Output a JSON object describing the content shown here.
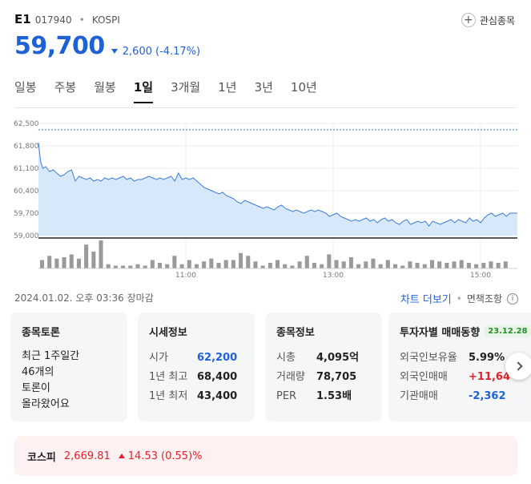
{
  "header": {
    "name": "E1",
    "code": "017940",
    "market": "KOSPI",
    "favorite_label": "관심종목"
  },
  "price": {
    "value": "59,700",
    "change": "2,600",
    "change_pct": "(-4.17%)",
    "direction": "down",
    "color": "#1f62d6"
  },
  "tabs": [
    {
      "label": "일봉",
      "active": false
    },
    {
      "label": "주봉",
      "active": false
    },
    {
      "label": "월봉",
      "active": false
    },
    {
      "label": "1일",
      "active": true
    },
    {
      "label": "3개월",
      "active": false
    },
    {
      "label": "1년",
      "active": false
    },
    {
      "label": "3년",
      "active": false
    },
    {
      "label": "10년",
      "active": false
    }
  ],
  "chart_data": {
    "type": "area",
    "y_ticks": [
      "62,500",
      "61,800",
      "61,100",
      "60,400",
      "59,700",
      "59,000"
    ],
    "ylim": [
      59000,
      62500
    ],
    "x_ticks": [
      "11:00",
      "13:00",
      "15:00"
    ],
    "x_tick_times": [
      11,
      13,
      15
    ],
    "xlim": [
      9,
      15.5
    ],
    "reference_line": 62300,
    "grid": true,
    "line_color": "#3b7dd8",
    "fill_color": "#d7e8fb",
    "series": [
      {
        "times": [
          9.0,
          9.03,
          9.06,
          9.1,
          9.15,
          9.2,
          9.25,
          9.3,
          9.35,
          9.4,
          9.45,
          9.5,
          9.55,
          9.6,
          9.65,
          9.7,
          9.75,
          9.8,
          9.85,
          9.9,
          9.95,
          10.0,
          10.05,
          10.1,
          10.15,
          10.2,
          10.25,
          10.3,
          10.35,
          10.4,
          10.45,
          10.5,
          10.55,
          10.6,
          10.65,
          10.7,
          10.75,
          10.8,
          10.85,
          10.9,
          10.95,
          11.0,
          11.05,
          11.1,
          11.15,
          11.2,
          11.25,
          11.3,
          11.35,
          11.4,
          11.45,
          11.5,
          11.55,
          11.6,
          11.65,
          11.7,
          11.75,
          11.8,
          11.85,
          11.9,
          11.95,
          12.0,
          12.05,
          12.1,
          12.15,
          12.2,
          12.25,
          12.3,
          12.35,
          12.4,
          12.45,
          12.5,
          12.55,
          12.6,
          12.65,
          12.7,
          12.75,
          12.8,
          12.85,
          12.9,
          12.95,
          13.0,
          13.05,
          13.1,
          13.15,
          13.2,
          13.25,
          13.3,
          13.35,
          13.4,
          13.45,
          13.5,
          13.55,
          13.6,
          13.65,
          13.7,
          13.75,
          13.8,
          13.85,
          13.9,
          13.95,
          14.0,
          14.05,
          14.1,
          14.15,
          14.2,
          14.25,
          14.3,
          14.35,
          14.4,
          14.45,
          14.5,
          14.55,
          14.6,
          14.65,
          14.7,
          14.75,
          14.8,
          14.85,
          14.9,
          14.95,
          15.0,
          15.05,
          15.1,
          15.15,
          15.2,
          15.25,
          15.3,
          15.35,
          15.4,
          15.45,
          15.5
        ],
        "prices": [
          61900,
          61300,
          61100,
          61150,
          61000,
          61050,
          60950,
          60850,
          60900,
          61000,
          61050,
          60700,
          60850,
          60800,
          60750,
          60800,
          60700,
          60750,
          60700,
          60800,
          60750,
          60800,
          60750,
          60800,
          60850,
          60750,
          60800,
          60700,
          60750,
          60750,
          60800,
          60850,
          60800,
          60750,
          60800,
          60750,
          60800,
          60850,
          60700,
          60950,
          60750,
          60800,
          60750,
          60800,
          60700,
          60600,
          60500,
          60450,
          60400,
          60350,
          60300,
          60350,
          60250,
          60200,
          60150,
          60050,
          60000,
          60100,
          60050,
          60000,
          59950,
          59900,
          59850,
          59900,
          59850,
          59800,
          59900,
          59950,
          59850,
          59800,
          59750,
          59800,
          59750,
          59700,
          59750,
          59800,
          59750,
          59800,
          59750,
          59700,
          59600,
          59650,
          59700,
          59600,
          59550,
          59500,
          59450,
          59500,
          59450,
          59500,
          59550,
          59450,
          59500,
          59400,
          59500,
          59550,
          59450,
          59500,
          59400,
          59350,
          59450,
          59500,
          59350,
          59400,
          59450,
          59400,
          59450,
          59300,
          59450,
          59400,
          59350,
          59400,
          59450,
          59500,
          59400,
          59500,
          59450,
          59400,
          59550,
          59450,
          59500,
          59400,
          59550,
          59650,
          59700,
          59600,
          59650,
          59700,
          59600,
          59700,
          59700,
          59700,
          59700,
          59700,
          59700
        ]
      }
    ],
    "volume_bars": [
      0.3,
      0.45,
      0.35,
      0.4,
      0.5,
      0.35,
      0.85,
      0.6,
      1.0,
      0.15,
      0.1,
      0.1,
      0.1,
      0.15,
      0.1,
      0.3,
      0.2,
      0.15,
      0.45,
      0.15,
      0.3,
      0.15,
      0.25,
      0.35,
      0.2,
      0.3,
      0.3,
      0.55,
      0.45,
      0.25,
      0.1,
      0.2,
      0.3,
      0.15,
      0.1,
      0.25,
      0.45,
      0.2,
      0.15,
      0.5,
      0.3,
      0.25,
      0.4,
      0.15,
      0.25,
      0.35,
      0.15,
      0.3,
      0.15,
      0.1,
      0.25,
      0.2,
      0.15,
      0.3,
      0.25,
      0.2,
      0.25,
      0.3,
      0.2,
      0.15,
      0.2,
      0.25,
      0.2,
      0.25
    ]
  },
  "date_line": "2024.01.02. 오후 03:36 장마감",
  "chart_more": "차트 더보기",
  "disclaimer": "면책조항",
  "cards": {
    "discussion": {
      "title": "종목토론",
      "lines": [
        "최근 1주일간",
        "46개의",
        "토론이",
        "올라왔어요"
      ]
    },
    "market": {
      "title": "시세정보",
      "rows": [
        {
          "k": "시가",
          "v": "62,200"
        },
        {
          "k": "1년 최고",
          "v": "68,400"
        },
        {
          "k": "1년 최저",
          "v": "43,400"
        }
      ]
    },
    "stock": {
      "title": "종목정보",
      "rows": [
        {
          "k": "시총",
          "v": "4,095억"
        },
        {
          "k": "거래량",
          "v": "78,705"
        },
        {
          "k": "PER",
          "v": "1.53배"
        }
      ]
    },
    "investor": {
      "title": "투자자별 매매동향",
      "badge": "23.12.28",
      "rows": [
        {
          "k": "외국인보유율",
          "v": "5.99%"
        },
        {
          "k": "외국인매매",
          "v": "+11,64"
        },
        {
          "k": "기관매매",
          "v": "-2,362"
        }
      ]
    }
  },
  "kospi": {
    "label": "코스피",
    "value": "2,669.81",
    "change": "14.53",
    "change_pct": "(0.55)%",
    "direction": "up"
  }
}
